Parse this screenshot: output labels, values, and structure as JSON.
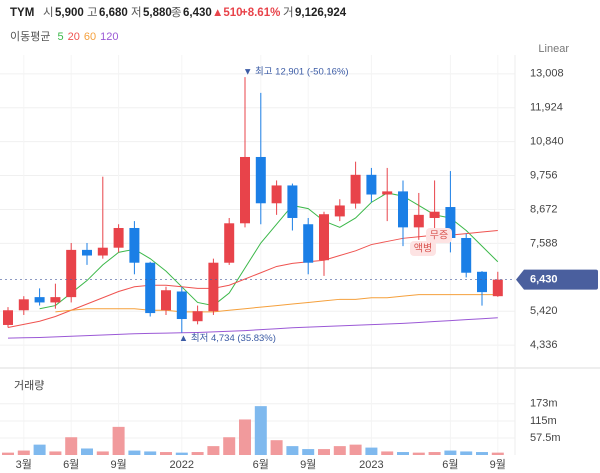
{
  "header": {
    "ticker": "TYM",
    "items": [
      {
        "label": "시",
        "value": "5,900"
      },
      {
        "label": "고",
        "value": "6,680"
      },
      {
        "label": "저",
        "value": "5,880"
      },
      {
        "label": "종",
        "value": "6,430"
      }
    ],
    "change": "▲510",
    "change_pct": "+8.61%",
    "volume_label": "거",
    "volume_value": "9,126,924"
  },
  "chart_data": {
    "type": "candlestick",
    "scale_label": "Linear",
    "ma_legend_title": "이동평균",
    "categories": [
      null,
      "3월",
      null,
      null,
      "6월",
      null,
      null,
      "9월",
      null,
      null,
      null,
      "2022",
      null,
      null,
      null,
      null,
      "6월",
      null,
      null,
      "9월",
      null,
      null,
      null,
      "2023",
      null,
      null,
      null,
      null,
      "6월",
      null,
      null,
      "9월"
    ],
    "open": [
      4980,
      5450,
      5870,
      5700,
      5870,
      7380,
      7200,
      7450,
      8080,
      6970,
      5450,
      6050,
      5100,
      5420,
      6970,
      8230,
      10350,
      8870,
      9440,
      8200,
      7050,
      8450,
      8860,
      9780,
      9150,
      9250,
      8100,
      8400,
      8750,
      7760,
      6680,
      5900
    ],
    "high": [
      5550,
      5900,
      6150,
      6300,
      7600,
      7600,
      9720,
      8200,
      8300,
      7000,
      6200,
      6200,
      5600,
      7100,
      8400,
      12901,
      12400,
      9600,
      9500,
      8400,
      8600,
      9000,
      10200,
      10000,
      10000,
      9600,
      9200,
      9600,
      9900,
      7900,
      6700,
      6680
    ],
    "low": [
      4900,
      5300,
      5600,
      5500,
      5700,
      6900,
      7100,
      7300,
      6600,
      5250,
      5300,
      4734,
      5000,
      5300,
      6900,
      8100,
      8200,
      8500,
      8000,
      6600,
      6550,
      8300,
      8700,
      8900,
      8300,
      7500,
      7700,
      7600,
      7300,
      6500,
      5600,
      5880
    ],
    "close": [
      5450,
      5800,
      5700,
      5870,
      7380,
      7200,
      7450,
      8080,
      6970,
      5360,
      6090,
      5170,
      5420,
      6970,
      8230,
      10350,
      8870,
      9440,
      8400,
      6970,
      8520,
      8800,
      9780,
      9150,
      9250,
      8100,
      8500,
      8600,
      7760,
      6650,
      6030,
      6430
    ],
    "up_color": "#e8434a",
    "down_color": "#1b7fe6",
    "ylim": [
      3860,
      13610
    ],
    "yticks": [
      {
        "value": 4336,
        "label": "4,336"
      },
      {
        "value": 5420,
        "label": "5,420"
      },
      {
        "value": 7588,
        "label": "7,588"
      },
      {
        "value": 8672,
        "label": "8,672"
      },
      {
        "value": 9756,
        "label": "9,756"
      },
      {
        "value": 10840,
        "label": "10,840"
      },
      {
        "value": 11924,
        "label": "11,924"
      },
      {
        "value": 13008,
        "label": "13,008"
      }
    ],
    "grid": true,
    "last_price": {
      "value": 6430,
      "label": "6,430"
    },
    "annotations": [
      {
        "text": "▼ 최고 12,901 (-50.16%)"
      },
      {
        "text": "▲ 최저 4,734 (35.83%)"
      }
    ],
    "events": [
      {
        "label": "무증"
      },
      {
        "label": "액병"
      }
    ],
    "moving_averages": [
      {
        "name": "5",
        "color": "#3cb84a",
        "values": [
          null,
          null,
          5500,
          5600,
          6000,
          6400,
          6900,
          7300,
          7400,
          7100,
          6700,
          6200,
          5700,
          5600,
          6000,
          6800,
          7600,
          8200,
          8800,
          8700,
          8300,
          8100,
          8400,
          8900,
          9200,
          9100,
          8800,
          8500,
          8400,
          8000,
          7500,
          7000
        ]
      },
      {
        "name": "20",
        "color": "#ef5350",
        "values": [
          4900,
          5000,
          5100,
          5250,
          5450,
          5650,
          5850,
          6050,
          6200,
          6250,
          6250,
          6200,
          6150,
          6150,
          6250,
          6450,
          6650,
          6850,
          6950,
          7000,
          7050,
          7200,
          7350,
          7550,
          7650,
          7750,
          7800,
          7850,
          7850,
          7900,
          7950,
          8000
        ]
      },
      {
        "name": "60",
        "color": "#f5a03c",
        "values": [
          null,
          null,
          null,
          5400,
          5450,
          5500,
          5500,
          5500,
          5500,
          5450,
          5450,
          5400,
          5400,
          5400,
          5450,
          5500,
          5550,
          5600,
          5650,
          5700,
          5750,
          5800,
          5800,
          5850,
          5850,
          5900,
          5950,
          5950,
          5950,
          5950,
          5950,
          5950
        ]
      },
      {
        "name": "120",
        "color": "#9b59d6",
        "values": [
          4560,
          4570,
          4580,
          4600,
          4620,
          4640,
          4660,
          4680,
          4700,
          4710,
          4720,
          4730,
          4740,
          4760,
          4780,
          4800,
          4830,
          4860,
          4890,
          4910,
          4930,
          4950,
          4970,
          4990,
          5010,
          5030,
          5060,
          5090,
          5120,
          5150,
          5180,
          5210
        ]
      }
    ],
    "volume": {
      "title": "거래량",
      "color_up": "#f19a9c",
      "color_down": "#7fb9ee",
      "values": [
        8,
        15,
        35,
        12,
        60,
        22,
        12,
        95,
        15,
        12,
        10,
        8,
        10,
        30,
        60,
        120,
        165,
        50,
        30,
        20,
        20,
        30,
        35,
        25,
        12,
        10,
        8,
        10,
        15,
        12,
        10,
        8
      ],
      "ylim": [
        0,
        260
      ],
      "yticks": [
        {
          "value": 57.5,
          "label": "57.5m"
        },
        {
          "value": 115,
          "label": "115m"
        },
        {
          "value": 173,
          "label": "173m"
        }
      ]
    }
  }
}
